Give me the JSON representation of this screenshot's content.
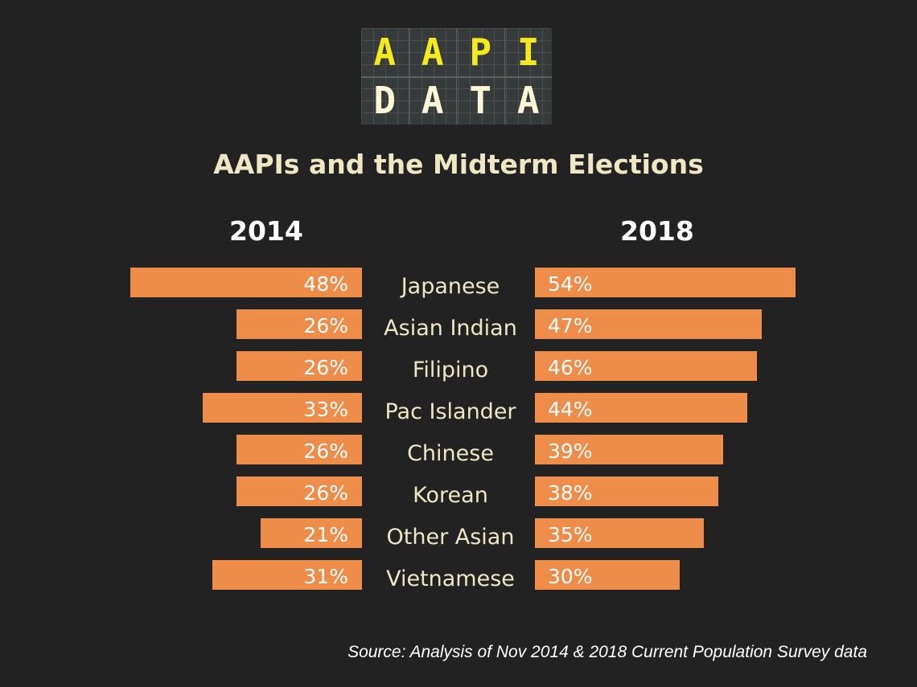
{
  "logo": {
    "line1": [
      "A",
      "A",
      "P",
      "I"
    ],
    "line2": [
      "D",
      "A",
      "T",
      "A"
    ]
  },
  "chart_data": {
    "type": "bar",
    "title": "AAPIs and the Midterm Elections",
    "categories": [
      "Japanese",
      "Asian Indian",
      "Filipino",
      "Pac Islander",
      "Chinese",
      "Korean",
      "Other Asian",
      "Vietnamese"
    ],
    "series": [
      {
        "name": "2014",
        "values": [
          48,
          26,
          26,
          33,
          26,
          26,
          21,
          31
        ]
      },
      {
        "name": "2018",
        "values": [
          54,
          47,
          46,
          44,
          39,
          38,
          35,
          30
        ]
      }
    ],
    "unit": "%",
    "color": "#ee8c4a",
    "source": "Source: Analysis of Nov 2014 & 2018 Current Population Survey data"
  }
}
